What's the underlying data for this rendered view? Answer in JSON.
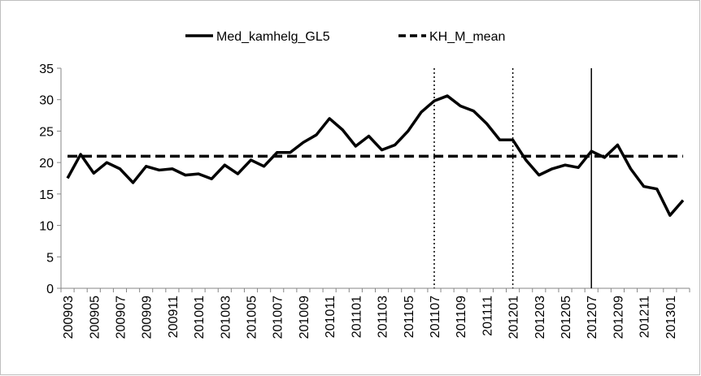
{
  "chart_data": {
    "type": "line",
    "categories": [
      "200903",
      null,
      "200905",
      null,
      "200907",
      null,
      "200909",
      null,
      "200911",
      null,
      "201001",
      null,
      "201003",
      null,
      "201005",
      null,
      "201007",
      null,
      "201009",
      null,
      "201011",
      null,
      "201101",
      null,
      "201103",
      null,
      "201105",
      null,
      "201107",
      null,
      "201109",
      null,
      "201111",
      null,
      "201201",
      null,
      "201203",
      null,
      "201205",
      null,
      "201207",
      null,
      "201209",
      null,
      "201211",
      null,
      "201301",
      null
    ],
    "series": [
      {
        "name": "Med_kamhelg_GL5",
        "color": "#000000",
        "dash": "solid",
        "values": [
          17.5,
          21.3,
          18.3,
          20.0,
          19.0,
          16.8,
          19.4,
          18.8,
          19.0,
          18.0,
          18.2,
          17.4,
          19.6,
          18.2,
          20.4,
          19.4,
          21.6,
          21.6,
          23.2,
          24.4,
          27.0,
          25.2,
          22.6,
          24.2,
          22.0,
          22.8,
          25.0,
          28.0,
          29.8,
          30.6,
          29.0,
          28.2,
          26.2,
          23.6,
          23.6,
          20.4,
          18.0,
          19.0,
          19.6,
          19.2,
          21.8,
          20.8,
          22.8,
          19.0,
          16.2,
          15.8,
          11.6,
          14.0
        ]
      },
      {
        "name": "KH_M_mean",
        "color": "#000000",
        "dash": "dashed",
        "values": [
          21,
          21,
          21,
          21,
          21,
          21,
          21,
          21,
          21,
          21,
          21,
          21,
          21,
          21,
          21,
          21,
          21,
          21,
          21,
          21,
          21,
          21,
          21,
          21,
          21,
          21,
          21,
          21,
          21,
          21,
          21,
          21,
          21,
          21,
          21,
          21,
          21,
          21,
          21,
          21,
          21,
          21,
          21,
          21,
          21,
          21,
          21,
          21
        ]
      }
    ],
    "vlines": [
      {
        "at": "201107",
        "style": "dotted"
      },
      {
        "at": "201201",
        "style": "dotted"
      },
      {
        "at": "201207",
        "style": "solid"
      }
    ],
    "ylim": [
      0,
      35
    ],
    "yticks": [
      0,
      5,
      10,
      15,
      20,
      25,
      30,
      35
    ],
    "grid": false,
    "legend": "top"
  }
}
